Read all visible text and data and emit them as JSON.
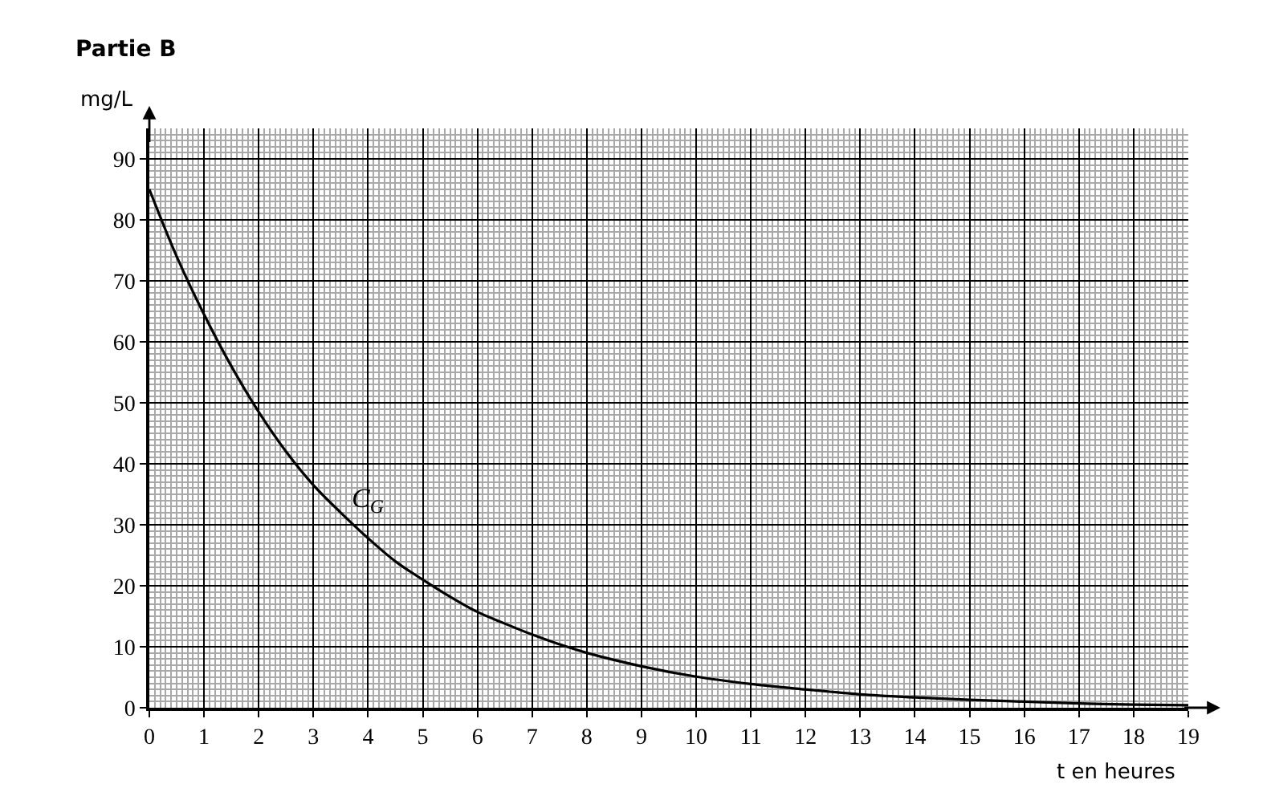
{
  "chart_data": {
    "type": "line",
    "title": "Partie B",
    "xlabel": "t en heures",
    "ylabel": "mg/L",
    "x": [
      0,
      0.5,
      1,
      1.5,
      2,
      2.5,
      3,
      3.5,
      4,
      4.5,
      5,
      5.5,
      6,
      6.5,
      7,
      7.5,
      8,
      9,
      10,
      11,
      12,
      13,
      14,
      15,
      16,
      17,
      18,
      19
    ],
    "series": [
      {
        "color": "#000000",
        "values": [
          85,
          74,
          64.5,
          56,
          48.5,
          42,
          36.5,
          32,
          27.8,
          24,
          21,
          18.2,
          15.7,
          13.8,
          12,
          10.4,
          9,
          6.8,
          5.1,
          3.9,
          3,
          2.2,
          1.7,
          1.3,
          1,
          0.7,
          0.5,
          0.4
        ]
      }
    ],
    "annotations": [
      {
        "text": "C$_{G}$",
        "x": 3.5,
        "y": 32
      }
    ],
    "xlim": [
      0,
      19
    ],
    "ylim": [
      0,
      95
    ],
    "xticks": [
      0,
      1,
      2,
      3,
      4,
      5,
      6,
      7,
      8,
      9,
      10,
      11,
      12,
      13,
      14,
      15,
      16,
      17,
      18,
      19,
      {
        "value": 0.1,
        "label": null
      },
      {
        "value": 0.2,
        "label": null
      },
      {
        "value": 0.3,
        "label": null
      },
      {
        "value": 0.4,
        "label": null
      },
      {
        "value": 0.5,
        "label": null
      },
      {
        "value": 0.6,
        "label": null
      },
      {
        "value": 0.7,
        "label": null
      },
      {
        "value": 0.8,
        "label": null
      },
      {
        "value": 0.9,
        "label": null
      },
      {
        "value": 1.1,
        "label": null
      },
      {
        "value": 1.2,
        "label": null
      },
      {
        "value": 1.3,
        "label": null
      },
      {
        "value": 1.4,
        "label": null
      },
      {
        "value": 1.5,
        "label": null
      },
      {
        "value": 1.6,
        "label": null
      },
      {
        "value": 1.7,
        "label": null
      },
      {
        "value": 1.8,
        "label": null
      },
      {
        "value": 1.9,
        "label": null
      },
      {
        "value": 2.1,
        "label": null
      },
      {
        "value": 2.2,
        "label": null
      },
      {
        "value": 2.3,
        "label": null
      },
      {
        "value": 2.4,
        "label": null
      },
      {
        "value": 2.5,
        "label": null
      },
      {
        "value": 2.6,
        "label": null
      },
      {
        "value": 2.7,
        "label": null
      },
      {
        "value": 2.8,
        "label": null
      },
      {
        "value": 2.9,
        "label": null
      },
      {
        "value": 3.1,
        "label": null
      },
      {
        "value": 3.2,
        "label": null
      },
      {
        "value": 3.3,
        "label": null
      },
      {
        "value": 3.4,
        "label": null
      },
      {
        "value": 3.5,
        "label": null
      },
      {
        "value": 3.6,
        "label": null
      },
      {
        "value": 3.7,
        "label": null
      },
      {
        "value": 3.8,
        "label": null
      },
      {
        "value": 3.9,
        "label": null
      },
      {
        "value": 4.1,
        "label": null
      },
      {
        "value": 4.2,
        "label": null
      },
      {
        "value": 4.3,
        "label": null
      },
      {
        "value": 4.4,
        "label": null
      },
      {
        "value": 4.5,
        "label": null
      },
      {
        "value": 4.6,
        "label": null
      },
      {
        "value": 4.7,
        "label": null
      },
      {
        "value": 4.8,
        "label": null
      },
      {
        "value": 4.9,
        "label": null
      },
      {
        "value": 5.1,
        "label": null
      },
      {
        "value": 5.2,
        "label": null
      },
      {
        "value": 5.3,
        "label": null
      },
      {
        "value": 5.4,
        "label": null
      },
      {
        "value": 5.5,
        "label": null
      },
      {
        "value": 5.6,
        "label": null
      },
      {
        "value": 5.7,
        "label": null
      },
      {
        "value": 5.8,
        "label": null
      },
      {
        "value": 5.9,
        "label": null
      },
      {
        "value": 6.1,
        "label": null
      },
      {
        "value": 6.2,
        "label": null
      },
      {
        "value": 6.3,
        "label": null
      },
      {
        "value": 6.4,
        "label": null
      },
      {
        "value": 6.5,
        "label": null
      },
      {
        "value": 6.6,
        "label": null
      },
      {
        "value": 6.7,
        "label": null
      },
      {
        "value": 6.8,
        "label": null
      },
      {
        "value": 6.9,
        "label": null
      },
      {
        "value": 7.1,
        "label": null
      },
      {
        "value": 7.2,
        "label": null
      },
      {
        "value": 7.3,
        "label": null
      },
      {
        "value": 7.4,
        "label": null
      },
      {
        "value": 7.5,
        "label": null
      },
      {
        "value": 7.6,
        "label": null
      },
      {
        "value": 7.7,
        "label": null
      },
      {
        "value": 7.8,
        "label": null
      },
      {
        "value": 7.9,
        "label": null
      },
      {
        "value": 8.1,
        "label": null
      },
      {
        "value": 8.2,
        "label": null
      },
      {
        "value": 8.3,
        "label": null
      },
      {
        "value": 8.4,
        "label": null
      },
      {
        "value": 8.5,
        "label": null
      },
      {
        "value": 8.6,
        "label": null
      },
      {
        "value": 8.7,
        "label": null
      },
      {
        "value": 8.8,
        "label": null
      },
      {
        "value": 8.9,
        "label": null
      },
      {
        "value": 9.1,
        "label": null
      },
      {
        "value": 9.2,
        "label": null
      },
      {
        "value": 9.3,
        "label": null
      },
      {
        "value": 9.4,
        "label": null
      },
      {
        "value": 9.5,
        "label": null
      },
      {
        "value": 9.6,
        "label": null
      },
      {
        "value": 9.7,
        "label": null
      },
      {
        "value": 9.8,
        "label": null
      },
      {
        "value": 9.9,
        "label": null
      },
      {
        "value": 10.1,
        "label": null
      },
      {
        "value": 10.2,
        "label": null
      },
      {
        "value": 10.3,
        "label": null
      },
      {
        "value": 10.4,
        "label": null
      },
      {
        "value": 10.5,
        "label": null
      },
      {
        "value": 10.6,
        "label": null
      },
      {
        "value": 10.7,
        "label": null
      },
      {
        "value": 10.8,
        "label": null
      },
      {
        "value": 10.9,
        "label": null
      },
      {
        "value": 11.1,
        "label": null
      },
      {
        "value": 11.2,
        "label": null
      },
      {
        "value": 11.3,
        "label": null
      },
      {
        "value": 11.4,
        "label": null
      },
      {
        "value": 11.5,
        "label": null
      },
      {
        "value": 11.6,
        "label": null
      },
      {
        "value": 11.7,
        "label": null
      },
      {
        "value": 11.8,
        "label": null
      },
      {
        "value": 11.9,
        "label": null
      },
      {
        "value": 12.1,
        "label": null
      },
      {
        "value": 12.2,
        "label": null
      },
      {
        "value": 12.3,
        "label": null
      },
      {
        "value": 12.4,
        "label": null
      },
      {
        "value": 12.5,
        "label": null
      },
      {
        "value": 12.6,
        "label": null
      },
      {
        "value": 12.7,
        "label": null
      },
      {
        "value": 12.8,
        "label": null
      },
      {
        "value": 12.9,
        "label": null
      },
      {
        "value": 13.1,
        "label": null
      },
      {
        "value": 13.2,
        "label": null
      },
      {
        "value": 13.3,
        "label": null
      },
      {
        "value": 13.4,
        "label": null
      },
      {
        "value": 13.5,
        "label": null
      },
      {
        "value": 13.6,
        "label": null
      },
      {
        "value": 13.7,
        "label": null
      },
      {
        "value": 13.8,
        "label": null
      },
      {
        "value": 13.9,
        "label": null
      },
      {
        "value": 14.1,
        "label": null
      },
      {
        "value": 14.2,
        "label": null
      },
      {
        "value": 14.3,
        "label": null
      },
      {
        "value": 14.4,
        "label": null
      },
      {
        "value": 14.5,
        "label": null
      },
      {
        "value": 14.6,
        "label": null
      },
      {
        "value": 14.7,
        "label": null
      },
      {
        "value": 14.8,
        "label": null
      },
      {
        "value": 14.9,
        "label": null
      },
      {
        "value": 15.1,
        "label": null
      },
      {
        "value": 15.2,
        "label": null
      },
      {
        "value": 15.3,
        "label": null
      },
      {
        "value": 15.4,
        "label": null
      },
      {
        "value": 15.5,
        "label": null
      },
      {
        "value": 15.6,
        "label": null
      },
      {
        "value": 15.7,
        "label": null
      },
      {
        "value": 15.8,
        "label": null
      },
      {
        "value": 15.9,
        "label": null
      },
      {
        "value": 16.1,
        "label": null
      },
      {
        "value": 16.2,
        "label": null
      },
      {
        "value": 16.3,
        "label": null
      },
      {
        "value": 16.4,
        "label": null
      },
      {
        "value": 16.5,
        "label": null
      },
      {
        "value": 16.6,
        "label": null
      },
      {
        "value": 16.7,
        "label": null
      },
      {
        "value": 16.8,
        "label": null
      },
      {
        "value": 16.9,
        "label": null
      },
      {
        "value": 17.1,
        "label": null
      },
      {
        "value": 17.2,
        "label": null
      },
      {
        "value": 17.3,
        "label": null
      },
      {
        "value": 17.4,
        "label": null
      },
      {
        "value": 17.5,
        "label": null
      },
      {
        "value": 17.6,
        "label": null
      },
      {
        "value": 17.7,
        "label": null
      },
      {
        "value": 17.8,
        "label": null
      },
      {
        "value": 17.9,
        "label": null
      },
      {
        "value": 18.1,
        "label": null
      },
      {
        "value": 18.2,
        "label": null
      },
      {
        "value": 18.3,
        "label": null
      },
      {
        "value": 18.4,
        "label": null
      },
      {
        "value": 18.5,
        "label": null
      },
      {
        "value": 18.6,
        "label": null
      },
      {
        "value": 18.7,
        "label": null
      },
      {
        "value": 18.8,
        "label": null
      },
      {
        "value": 18.9,
        "label": null
      }
    ],
    "yticks": [
      0,
      10,
      20,
      30,
      40,
      50,
      60,
      70,
      80,
      90,
      {
        "value": 1,
        "label": null
      },
      {
        "value": 2,
        "label": null
      },
      {
        "value": 3,
        "label": null
      },
      {
        "value": 4,
        "label": null
      },
      {
        "value": 5,
        "label": null
      },
      {
        "value": 6,
        "label": null
      },
      {
        "value": 7,
        "label": null
      },
      {
        "value": 8,
        "label": null
      },
      {
        "value": 9,
        "label": null
      },
      {
        "value": 11,
        "label": null
      },
      {
        "value": 12,
        "label": null
      },
      {
        "value": 13,
        "label": null
      },
      {
        "value": 14,
        "label": null
      },
      {
        "value": 15,
        "label": null
      },
      {
        "value": 16,
        "label": null
      },
      {
        "value": 17,
        "label": null
      },
      {
        "value": 18,
        "label": null
      },
      {
        "value": 19,
        "label": null
      },
      {
        "value": 21,
        "label": null
      },
      {
        "value": 22,
        "label": null
      },
      {
        "value": 23,
        "label": null
      },
      {
        "value": 24,
        "label": null
      },
      {
        "value": 25,
        "label": null
      },
      {
        "value": 26,
        "label": null
      },
      {
        "value": 27,
        "label": null
      },
      {
        "value": 28,
        "label": null
      },
      {
        "value": 29,
        "label": null
      },
      {
        "value": 31,
        "label": null
      },
      {
        "value": 32,
        "label": null
      },
      {
        "value": 33,
        "label": null
      },
      {
        "value": 34,
        "label": null
      },
      {
        "value": 35,
        "label": null
      },
      {
        "value": 36,
        "label": null
      },
      {
        "value": 37,
        "label": null
      },
      {
        "value": 38,
        "label": null
      },
      {
        "value": 39,
        "label": null
      },
      {
        "value": 41,
        "label": null
      },
      {
        "value": 42,
        "label": null
      },
      {
        "value": 43,
        "label": null
      },
      {
        "value": 44,
        "label": null
      },
      {
        "value": 45,
        "label": null
      },
      {
        "value": 46,
        "label": null
      },
      {
        "value": 47,
        "label": null
      },
      {
        "value": 48,
        "label": null
      },
      {
        "value": 49,
        "label": null
      },
      {
        "value": 51,
        "label": null
      },
      {
        "value": 52,
        "label": null
      },
      {
        "value": 53,
        "label": null
      },
      {
        "value": 54,
        "label": null
      },
      {
        "value": 55,
        "label": null
      },
      {
        "value": 56,
        "label": null
      },
      {
        "value": 57,
        "label": null
      },
      {
        "value": 58,
        "label": null
      },
      {
        "value": 59,
        "label": null
      },
      {
        "value": 61,
        "label": null
      },
      {
        "value": 62,
        "label": null
      },
      {
        "value": 63,
        "label": null
      },
      {
        "value": 64,
        "label": null
      },
      {
        "value": 65,
        "label": null
      },
      {
        "value": 66,
        "label": null
      },
      {
        "value": 67,
        "label": null
      },
      {
        "value": 68,
        "label": null
      },
      {
        "value": 69,
        "label": null
      },
      {
        "value": 71,
        "label": null
      },
      {
        "value": 72,
        "label": null
      },
      {
        "value": 73,
        "label": null
      },
      {
        "value": 74,
        "label": null
      },
      {
        "value": 75,
        "label": null
      },
      {
        "value": 76,
        "label": null
      },
      {
        "value": 77,
        "label": null
      },
      {
        "value": 78,
        "label": null
      },
      {
        "value": 79,
        "label": null
      },
      {
        "value": 81,
        "label": null
      },
      {
        "value": 82,
        "label": null
      },
      {
        "value": 83,
        "label": null
      },
      {
        "value": 84,
        "label": null
      },
      {
        "value": 85,
        "label": null
      },
      {
        "value": 86,
        "label": null
      },
      {
        "value": 87,
        "label": null
      },
      {
        "value": 88,
        "label": null
      },
      {
        "value": 89,
        "label": null
      },
      {
        "value": 91,
        "label": null
      },
      {
        "value": 92,
        "label": null
      },
      {
        "value": 93,
        "label": null
      },
      {
        "value": 94,
        "label": null
      }
    ],
    "grid": true,
    "marker": "none",
    "line_style": "solid"
  }
}
